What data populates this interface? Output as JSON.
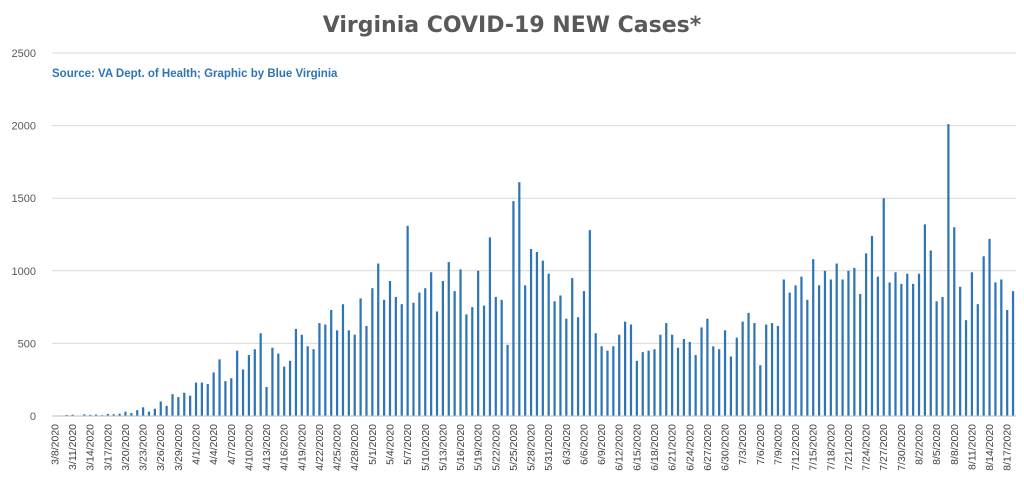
{
  "chart_data": {
    "type": "bar",
    "title": "Virginia COVID-19 NEW Cases*",
    "subtitle": "Source: VA Dept. of Health; Graphic by Blue Virginia",
    "xlabel": "",
    "ylabel": "",
    "ylim": [
      0,
      2500
    ],
    "yticks": [
      0,
      500,
      1000,
      1500,
      2000,
      2500
    ],
    "grid": true,
    "legend": "none",
    "bar_color": "#2E75B6",
    "start_date": "3/8/2020",
    "tick_every": 3,
    "categories": [
      "3/8/2020",
      "3/9/2020",
      "3/10/2020",
      "3/11/2020",
      "3/12/2020",
      "3/13/2020",
      "3/14/2020",
      "3/15/2020",
      "3/16/2020",
      "3/17/2020",
      "3/18/2020",
      "3/19/2020",
      "3/20/2020",
      "3/21/2020",
      "3/22/2020",
      "3/23/2020",
      "3/24/2020",
      "3/25/2020",
      "3/26/2020",
      "3/27/2020",
      "3/28/2020",
      "3/29/2020",
      "3/30/2020",
      "3/31/2020",
      "4/1/2020",
      "4/2/2020",
      "4/3/2020",
      "4/4/2020",
      "4/5/2020",
      "4/6/2020",
      "4/7/2020",
      "4/8/2020",
      "4/9/2020",
      "4/10/2020",
      "4/11/2020",
      "4/12/2020",
      "4/13/2020",
      "4/14/2020",
      "4/15/2020",
      "4/16/2020",
      "4/17/2020",
      "4/18/2020",
      "4/19/2020",
      "4/20/2020",
      "4/21/2020",
      "4/22/2020",
      "4/23/2020",
      "4/24/2020",
      "4/25/2020",
      "4/26/2020",
      "4/27/2020",
      "4/28/2020",
      "4/29/2020",
      "4/30/2020",
      "5/1/2020",
      "5/2/2020",
      "5/3/2020",
      "5/4/2020",
      "5/5/2020",
      "5/6/2020",
      "5/7/2020",
      "5/8/2020",
      "5/9/2020",
      "5/10/2020",
      "5/11/2020",
      "5/12/2020",
      "5/13/2020",
      "5/14/2020",
      "5/15/2020",
      "5/16/2020",
      "5/17/2020",
      "5/18/2020",
      "5/19/2020",
      "5/20/2020",
      "5/21/2020",
      "5/22/2020",
      "5/23/2020",
      "5/24/2020",
      "5/25/2020",
      "5/26/2020",
      "5/27/2020",
      "5/28/2020",
      "5/29/2020",
      "5/30/2020",
      "5/31/2020",
      "6/1/2020",
      "6/2/2020",
      "6/3/2020",
      "6/4/2020",
      "6/5/2020",
      "6/6/2020",
      "6/7/2020",
      "6/8/2020",
      "6/9/2020",
      "6/10/2020",
      "6/11/2020",
      "6/12/2020",
      "6/13/2020",
      "6/14/2020",
      "6/15/2020",
      "6/16/2020",
      "6/17/2020",
      "6/18/2020",
      "6/19/2020",
      "6/20/2020",
      "6/21/2020",
      "6/22/2020",
      "6/23/2020",
      "6/24/2020",
      "6/25/2020",
      "6/26/2020",
      "6/27/2020",
      "6/28/2020",
      "6/29/2020",
      "6/30/2020",
      "7/1/2020",
      "7/2/2020",
      "7/3/2020",
      "7/4/2020",
      "7/5/2020",
      "7/6/2020",
      "7/7/2020",
      "7/8/2020",
      "7/9/2020",
      "7/10/2020",
      "7/11/2020",
      "7/12/2020",
      "7/13/2020",
      "7/14/2020",
      "7/15/2020",
      "7/16/2020",
      "7/17/2020",
      "7/18/2020",
      "7/19/2020",
      "7/20/2020",
      "7/21/2020",
      "7/22/2020",
      "7/23/2020",
      "7/24/2020",
      "7/25/2020",
      "7/26/2020",
      "7/27/2020",
      "7/28/2020",
      "7/29/2020",
      "7/30/2020",
      "7/31/2020",
      "8/1/2020",
      "8/2/2020",
      "8/3/2020",
      "8/4/2020",
      "8/5/2020",
      "8/6/2020",
      "8/7/2020",
      "8/8/2020",
      "8/9/2020",
      "8/10/2020",
      "8/11/2020",
      "8/12/2020",
      "8/13/2020",
      "8/14/2020",
      "8/15/2020",
      "8/16/2020",
      "8/17/2020",
      "8/18/2020"
    ],
    "values": [
      2,
      4,
      7,
      9,
      3,
      11,
      8,
      10,
      6,
      14,
      12,
      16,
      30,
      20,
      40,
      60,
      30,
      50,
      100,
      70,
      150,
      130,
      160,
      140,
      230,
      230,
      220,
      300,
      390,
      240,
      260,
      450,
      320,
      420,
      460,
      570,
      200,
      470,
      430,
      340,
      380,
      600,
      560,
      480,
      460,
      640,
      630,
      730,
      590,
      770,
      590,
      560,
      810,
      620,
      880,
      1050,
      800,
      930,
      820,
      770,
      1310,
      780,
      850,
      880,
      990,
      720,
      930,
      1060,
      860,
      1010,
      700,
      750,
      1000,
      760,
      1230,
      820,
      800,
      490,
      1480,
      1610,
      900,
      1150,
      1130,
      1070,
      980,
      790,
      830,
      670,
      950,
      680,
      860,
      1280,
      570,
      480,
      450,
      480,
      560,
      650,
      630,
      380,
      440,
      450,
      460,
      560,
      640,
      560,
      470,
      530,
      510,
      420,
      610,
      670,
      480,
      460,
      590,
      410,
      540,
      650,
      710,
      640,
      350,
      630,
      640,
      620,
      940,
      850,
      900,
      960,
      800,
      1080,
      900,
      1000,
      940,
      1050,
      940,
      1000,
      1020,
      840,
      1120,
      1240,
      960,
      1500,
      920,
      990,
      910,
      980,
      910,
      980,
      1320,
      1140,
      790,
      820,
      2010,
      1300,
      890,
      660,
      990,
      770,
      1100,
      1220,
      920,
      940,
      730,
      860
    ]
  }
}
